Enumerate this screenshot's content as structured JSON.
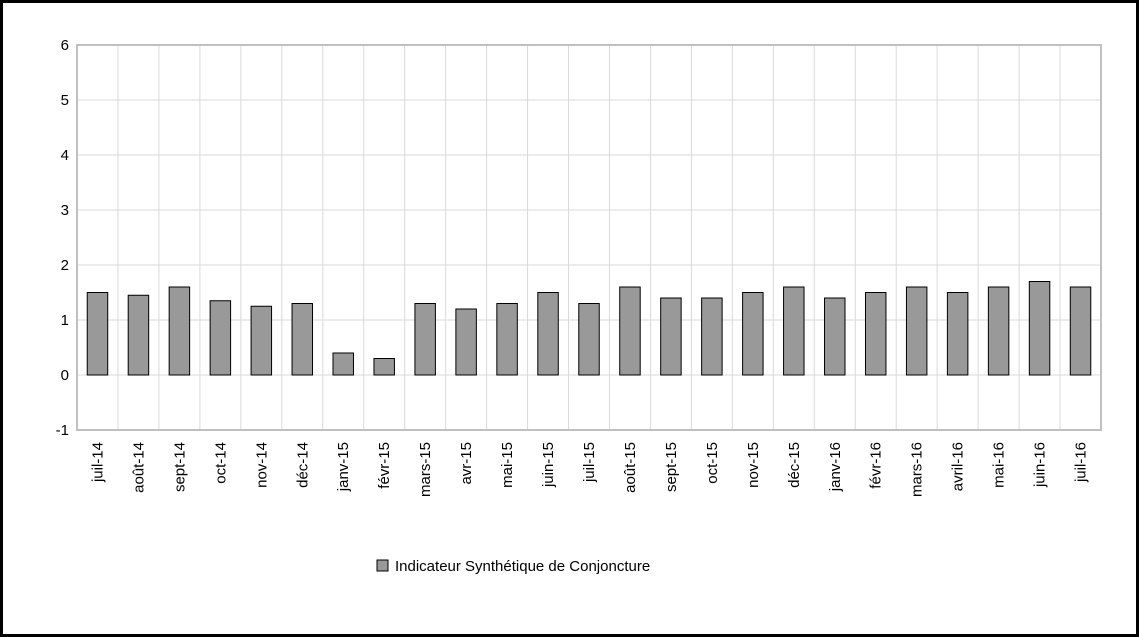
{
  "chart_data": {
    "type": "bar",
    "categories": [
      "juil-14",
      "août-14",
      "sept-14",
      "oct-14",
      "nov-14",
      "déc-14",
      "janv-15",
      "févr-15",
      "mars-15",
      "avr-15",
      "mai-15",
      "juin-15",
      "juil-15",
      "août-15",
      "sept-15",
      "oct-15",
      "nov-15",
      "déc-15",
      "janv-16",
      "févr-16",
      "mars-16",
      "avril-16",
      "mai-16",
      "juin-16",
      "juil-16"
    ],
    "series": [
      {
        "name": "Indicateur Synthétique de Conjoncture",
        "values": [
          1.5,
          1.45,
          1.6,
          1.35,
          1.25,
          1.3,
          0.4,
          0.3,
          1.3,
          1.2,
          1.3,
          1.5,
          1.3,
          1.6,
          1.4,
          1.4,
          1.5,
          1.6,
          1.4,
          1.5,
          1.6,
          1.5,
          1.6,
          1.7,
          1.6
        ]
      }
    ],
    "ylim": [
      -1,
      6
    ],
    "yticks": [
      -1,
      0,
      1,
      2,
      3,
      4,
      5,
      6
    ],
    "grid": true,
    "legend_position": "bottom",
    "colors": {
      "bar": "#999999",
      "bar_border": "#000000",
      "grid": "#d9d9d9",
      "axis": "#c0c0c0"
    }
  }
}
